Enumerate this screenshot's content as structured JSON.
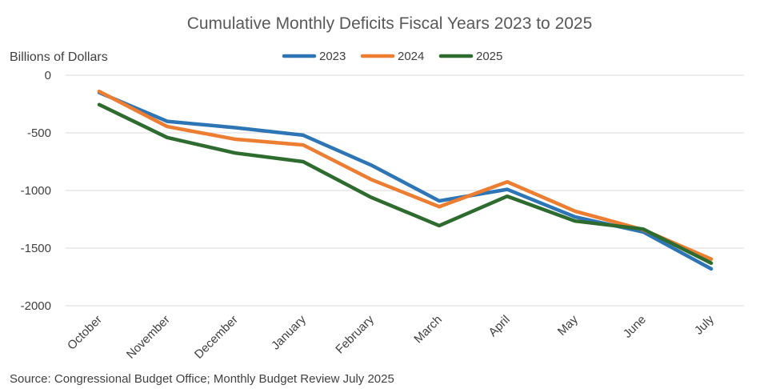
{
  "chart_data": {
    "type": "line",
    "title": "Cumulative Monthly Deficits Fiscal Years 2023 to 2025",
    "ylabel": "Billions of Dollars",
    "xlabel": "",
    "categories": [
      "October",
      "November",
      "December",
      "January",
      "February",
      "March",
      "April",
      "May",
      "June",
      "July"
    ],
    "yticks": [
      "0",
      "-500",
      "-1000",
      "-1500",
      "-2000"
    ],
    "ylim": [
      -2000,
      0
    ],
    "grid": true,
    "legend_position": "top-center",
    "series": [
      {
        "name": "2023",
        "color": "#2e75b6",
        "values": [
          -150,
          -400,
          -455,
          -520,
          -780,
          -1090,
          -990,
          -1230,
          -1360,
          -1680
        ]
      },
      {
        "name": "2024",
        "color": "#ed7d31",
        "values": [
          -140,
          -445,
          -555,
          -605,
          -905,
          -1140,
          -925,
          -1180,
          -1340,
          -1595
        ]
      },
      {
        "name": "2025",
        "color": "#2e6b2e",
        "values": [
          -255,
          -540,
          -675,
          -750,
          -1060,
          -1305,
          -1050,
          -1265,
          -1335,
          -1630
        ]
      }
    ],
    "source": "Source: Congressional Budget Office; Monthly Budget Review July 2025"
  }
}
